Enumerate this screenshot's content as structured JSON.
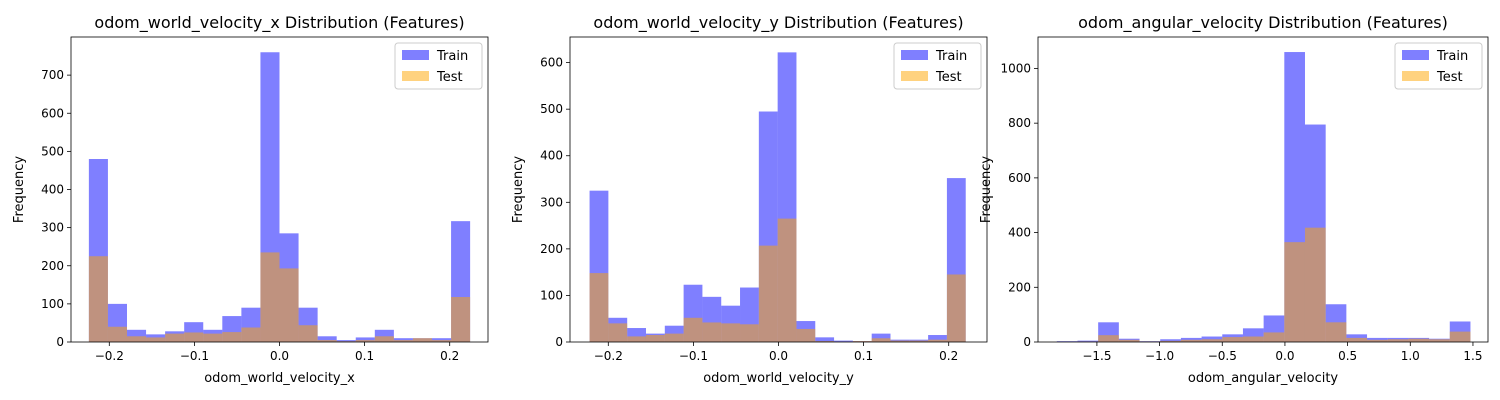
{
  "colors": {
    "train": "#0000ff",
    "test": "#ffa500",
    "bar_alpha": 0.5
  },
  "chart_data": [
    {
      "type": "histogram",
      "title": "odom_world_velocity_x Distribution (Features)",
      "xlabel": "odom_world_velocity_x",
      "ylabel": "Frequency",
      "xlim": [
        -0.245,
        0.245
      ],
      "ylim": [
        0,
        800
      ],
      "xticks": [
        -0.2,
        -0.1,
        0.0,
        0.1,
        0.2
      ],
      "xtick_labels": [
        "−0.2",
        "−0.1",
        "0.0",
        "0.1",
        "0.2"
      ],
      "yticks": [
        0,
        100,
        200,
        300,
        400,
        500,
        600,
        700
      ],
      "legend": {
        "position": "top-right",
        "entries": [
          "Train",
          "Test"
        ]
      },
      "series": [
        {
          "name": "Train",
          "bin_start": -0.224,
          "bin_width": 0.0224,
          "values": [
            480,
            100,
            32,
            20,
            28,
            52,
            32,
            68,
            90,
            760,
            285,
            90,
            15,
            5,
            12,
            32,
            10,
            10,
            10,
            317
          ]
        },
        {
          "name": "Test",
          "bin_start": -0.224,
          "bin_width": 0.0224,
          "values": [
            225,
            40,
            15,
            12,
            22,
            25,
            22,
            26,
            38,
            235,
            193,
            44,
            5,
            2,
            5,
            15,
            5,
            10,
            5,
            118
          ]
        }
      ]
    },
    {
      "type": "histogram",
      "title": "odom_world_velocity_y Distribution (Features)",
      "xlabel": "odom_world_velocity_y",
      "ylabel": "Frequency",
      "xlim": [
        -0.245,
        0.245
      ],
      "ylim": [
        0,
        655
      ],
      "xticks": [
        -0.2,
        -0.1,
        0.0,
        0.1,
        0.2
      ],
      "xtick_labels": [
        "−0.2",
        "−0.1",
        "0.0",
        "0.1",
        "0.2"
      ],
      "yticks": [
        0,
        100,
        200,
        300,
        400,
        500,
        600
      ],
      "legend": {
        "position": "top-right",
        "entries": [
          "Train",
          "Test"
        ]
      },
      "series": [
        {
          "name": "Train",
          "bin_start": -0.222,
          "bin_width": 0.0221,
          "values": [
            325,
            52,
            30,
            18,
            35,
            123,
            97,
            78,
            117,
            495,
            622,
            45,
            10,
            3,
            2,
            18,
            5,
            5,
            15,
            352
          ]
        },
        {
          "name": "Test",
          "bin_start": -0.222,
          "bin_width": 0.0221,
          "values": [
            148,
            40,
            12,
            15,
            18,
            52,
            42,
            40,
            38,
            207,
            265,
            28,
            2,
            1,
            2,
            8,
            3,
            3,
            5,
            145
          ]
        }
      ]
    },
    {
      "type": "histogram",
      "title": "odom_angular_velocity Distribution (Features)",
      "xlabel": "odom_angular_velocity",
      "ylabel": "Frequency",
      "xlim": [
        -1.97,
        1.62
      ],
      "ylim": [
        0,
        1115
      ],
      "xticks": [
        -1.5,
        -1.0,
        -0.5,
        0.0,
        0.5,
        1.0,
        1.5
      ],
      "xtick_labels": [
        "−1.5",
        "−1.0",
        "−0.5",
        "0.0",
        "0.5",
        "1.0",
        "1.5"
      ],
      "yticks": [
        0,
        200,
        400,
        600,
        800,
        1000
      ],
      "legend": {
        "position": "top-right",
        "entries": [
          "Train",
          "Test"
        ]
      },
      "series": [
        {
          "name": "Train",
          "bin_start": -1.82,
          "bin_width": 0.165,
          "values": [
            3,
            5,
            72,
            12,
            3,
            10,
            15,
            20,
            28,
            50,
            97,
            1060,
            795,
            138,
            28,
            15,
            15,
            15,
            12,
            75
          ]
        },
        {
          "name": "Test",
          "bin_start": -1.82,
          "bin_width": 0.165,
          "values": [
            1,
            2,
            25,
            8,
            2,
            4,
            8,
            10,
            18,
            20,
            35,
            365,
            418,
            72,
            15,
            8,
            10,
            12,
            10,
            38
          ]
        }
      ]
    }
  ]
}
